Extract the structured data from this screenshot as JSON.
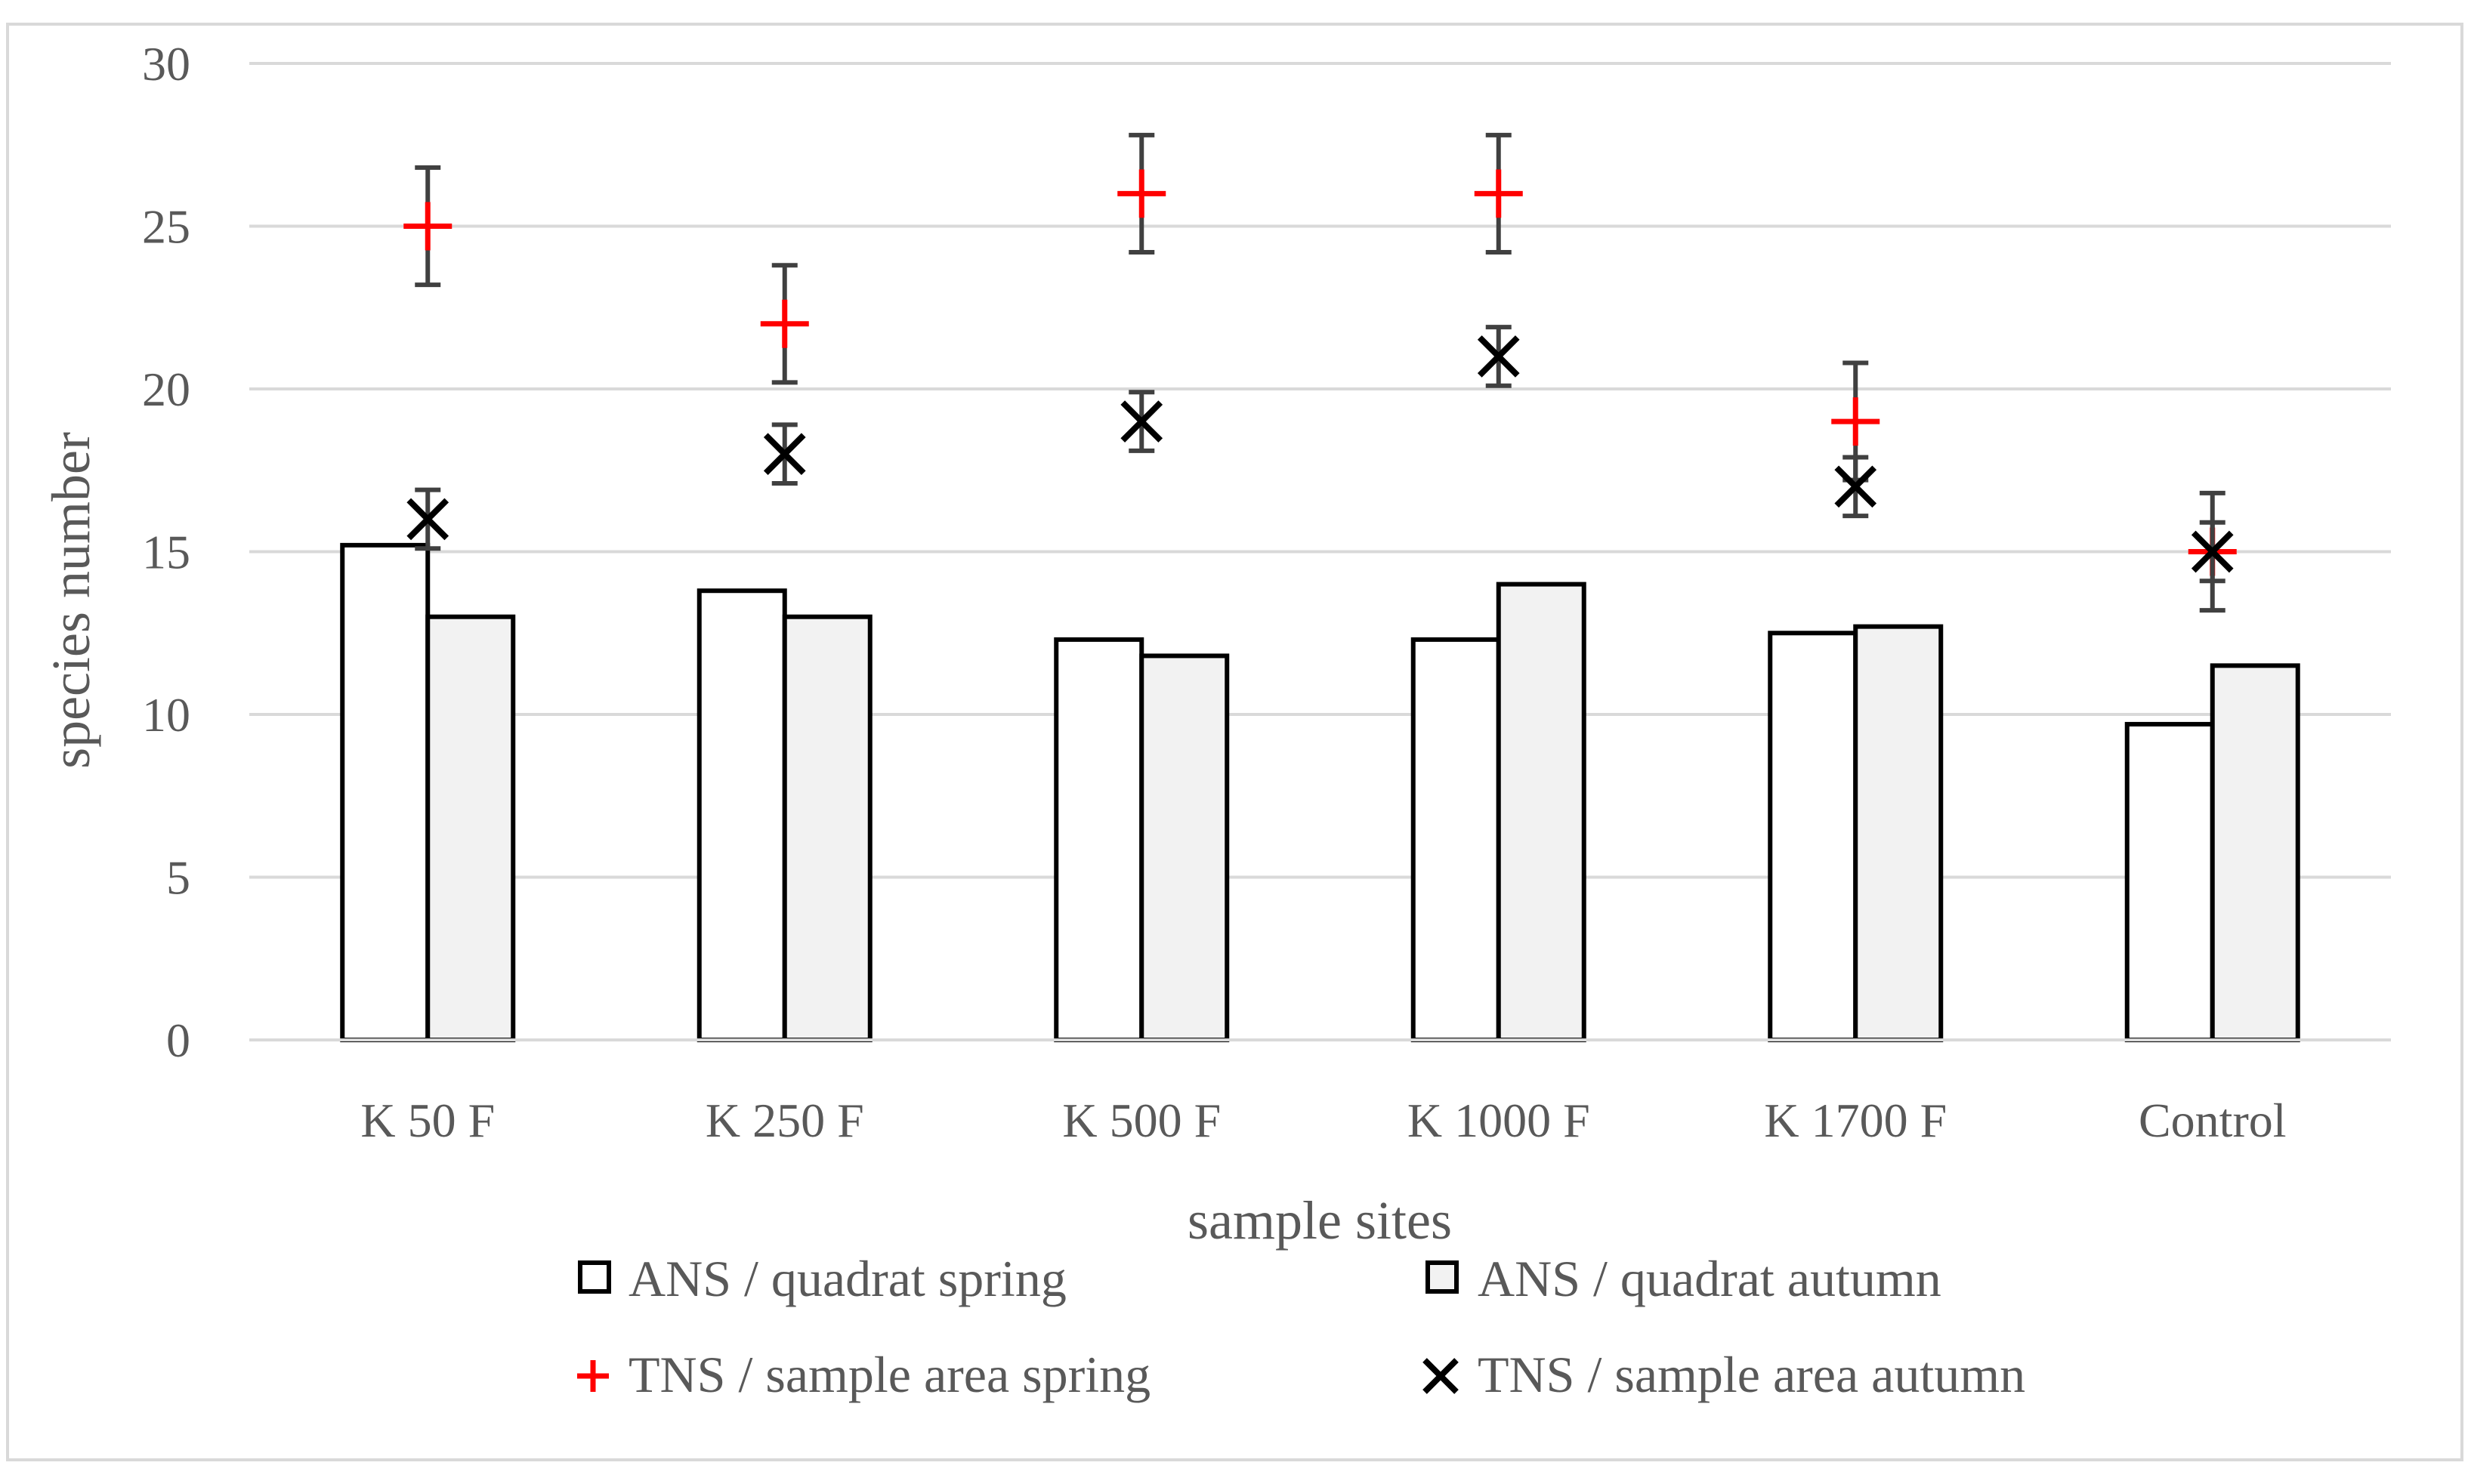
{
  "chart_data": {
    "type": "bar",
    "title": "",
    "xlabel": "sample sites",
    "ylabel": "species number",
    "ylim": [
      0,
      30
    ],
    "yticks": [
      0,
      5,
      10,
      15,
      20,
      25,
      30
    ],
    "grid": true,
    "legend_position": "bottom",
    "categories": [
      "K 50 F",
      "K 250 F",
      "K 500 F",
      "K 1000 F",
      "K 1700 F",
      "Control"
    ],
    "series": [
      {
        "name": "ANS / quadrat spring",
        "kind": "bar",
        "fill": "#ffffff",
        "values": [
          15.2,
          13.8,
          12.3,
          12.3,
          12.5,
          9.7
        ]
      },
      {
        "name": "ANS / quadrat autumn",
        "kind": "bar",
        "fill": "#f2f2f2",
        "values": [
          13.0,
          13.0,
          11.8,
          14.0,
          12.7,
          11.5
        ]
      },
      {
        "name": "TNS / sample area spring",
        "kind": "marker",
        "marker": "plus",
        "color": "#ff0000",
        "values": [
          25,
          22,
          26,
          26,
          19,
          15
        ],
        "error": [
          1.8,
          1.8,
          1.8,
          1.8,
          1.8,
          1.8
        ]
      },
      {
        "name": "TNS / sample area autumn",
        "kind": "marker",
        "marker": "cross",
        "color": "#000000",
        "values": [
          16,
          18,
          19,
          21,
          17,
          15
        ],
        "error": [
          0.9,
          0.9,
          0.9,
          0.9,
          0.9,
          0.9
        ]
      }
    ],
    "colors": {
      "grid": "#d9d9d9",
      "text": "#595959",
      "bar_edge": "#000000",
      "error_bar": "#404040"
    }
  }
}
